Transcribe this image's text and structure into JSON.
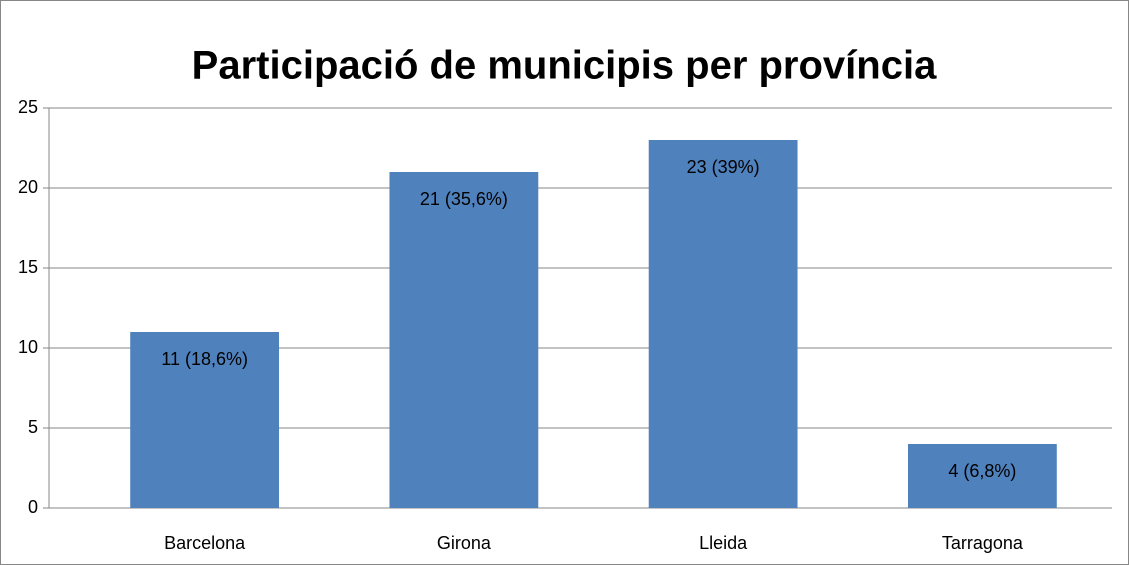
{
  "chart_data": {
    "type": "bar",
    "title": "Participació de municipis per província",
    "categories": [
      "Barcelona",
      "Girona",
      "Lleida",
      "Tarragona"
    ],
    "values": [
      11,
      21,
      23,
      4
    ],
    "value_labels": [
      "11 (18,6%)",
      "21 (35,6%)",
      "23 (39%)",
      "4 (6,8%)"
    ],
    "color": "#4f81bd",
    "ylim": [
      0,
      25
    ],
    "yticks": [
      0,
      5,
      10,
      15,
      20,
      25
    ],
    "grid": true
  }
}
